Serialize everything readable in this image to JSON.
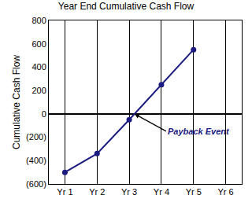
{
  "chart_data": {
    "type": "line",
    "title": "Year End Cumulative Cash Flow",
    "y_label": "Cumulative Cash Flow",
    "categories": [
      "Yr 1",
      "Yr 2",
      "Yr 3",
      "Yr 4",
      "Yr 5",
      "Yr 6"
    ],
    "values": [
      -500,
      -340,
      -50,
      250,
      550,
      null
    ],
    "color": "#1c1c80",
    "marker": "circle",
    "ylim": [
      -600,
      800
    ],
    "yticks": [
      {
        "value": -600,
        "label": "(600)"
      },
      {
        "value": -400,
        "label": "(400)"
      },
      {
        "value": -200,
        "label": "(200)"
      },
      0,
      200,
      400,
      600,
      800
    ],
    "grid": true,
    "annotation": "Payback Event"
  }
}
